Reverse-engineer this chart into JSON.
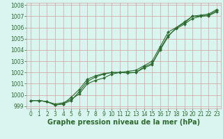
{
  "x": [
    0,
    1,
    2,
    3,
    4,
    5,
    6,
    7,
    8,
    9,
    10,
    11,
    12,
    13,
    14,
    15,
    16,
    17,
    18,
    19,
    20,
    21,
    22,
    23
  ],
  "series1": [
    999.5,
    999.5,
    999.4,
    999.1,
    999.2,
    999.5,
    1000.3,
    1001.2,
    1001.6,
    1001.85,
    1002.0,
    1002.0,
    1002.0,
    1002.0,
    1002.5,
    1002.8,
    1004.0,
    1005.2,
    1006.0,
    1006.5,
    1007.0,
    1007.0,
    1007.1,
    1007.5
  ],
  "series2": [
    999.5,
    999.5,
    999.4,
    999.1,
    999.2,
    999.8,
    1000.5,
    1001.4,
    1001.7,
    1001.9,
    1002.0,
    1002.0,
    1002.1,
    1002.2,
    1002.6,
    1003.0,
    1004.3,
    1005.6,
    1006.0,
    1006.4,
    1007.0,
    1007.1,
    1007.2,
    1007.6
  ],
  "series3": [
    999.5,
    999.5,
    999.4,
    999.2,
    999.3,
    999.6,
    1000.1,
    1001.0,
    1001.3,
    1001.5,
    1001.85,
    1002.0,
    1001.95,
    1002.0,
    1002.4,
    1002.7,
    1004.1,
    1005.3,
    1005.9,
    1006.3,
    1006.8,
    1007.0,
    1007.05,
    1007.4
  ],
  "line_color": "#2d6a2d",
  "marker": "D",
  "markersize": 2.0,
  "linewidth": 0.8,
  "xlabel": "Graphe pression niveau de la mer (hPa)",
  "xlabel_fontsize": 7,
  "xlabel_bold": true,
  "ylim": [
    998.8,
    1008.2
  ],
  "xlim": [
    -0.5,
    23.5
  ],
  "yticks": [
    999,
    1000,
    1001,
    1002,
    1003,
    1004,
    1005,
    1006,
    1007,
    1008
  ],
  "xticks": [
    0,
    1,
    2,
    3,
    4,
    5,
    6,
    7,
    8,
    9,
    10,
    11,
    12,
    13,
    14,
    15,
    16,
    17,
    18,
    19,
    20,
    21,
    22,
    23
  ],
  "grid_color": "#d4a0a0",
  "bg_color": "#d9f5f0",
  "tick_fontsize": 5.5,
  "tick_color": "#2d6a2d",
  "figsize": [
    3.2,
    2.0
  ],
  "dpi": 100
}
